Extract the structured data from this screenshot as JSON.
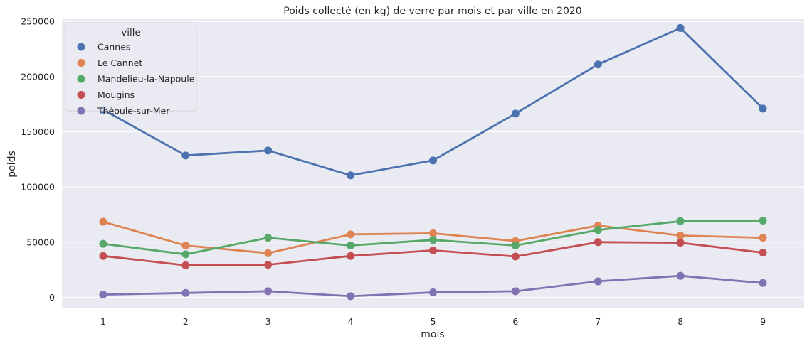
{
  "chart_data": {
    "type": "line",
    "title": "Poids collecté (en kg) de verre par mois et par ville en 2020",
    "xlabel": "mois",
    "ylabel": "poids",
    "x": [
      "1",
      "2",
      "3",
      "4",
      "5",
      "6",
      "7",
      "8",
      "9"
    ],
    "yticks": [
      "0",
      "50000",
      "100000",
      "150000",
      "200000",
      "250000"
    ],
    "ylim": [
      -10000,
      252000
    ],
    "grid": true,
    "legend": {
      "title": "ville",
      "placement": "top-left"
    },
    "series": [
      {
        "name": "Cannes",
        "color": "#4c72b0",
        "values": [
          170000,
          128500,
          133000,
          110500,
          124000,
          166500,
          211000,
          244000,
          171000
        ]
      },
      {
        "name": "Le Cannet",
        "color": "#dd8452",
        "values": [
          68500,
          47000,
          40000,
          57000,
          58000,
          51000,
          65000,
          56000,
          54000
        ]
      },
      {
        "name": "Mandelieu-la-Napoule",
        "color": "#55a868",
        "values": [
          48500,
          39000,
          54000,
          47000,
          52000,
          47000,
          61000,
          69000,
          69500
        ]
      },
      {
        "name": "Mougins",
        "color": "#c44e52",
        "values": [
          37500,
          29000,
          29500,
          37500,
          42500,
          37000,
          50000,
          49500,
          40500
        ]
      },
      {
        "name": "Théoule-sur-Mer",
        "color": "#8172b3",
        "values": [
          2500,
          4000,
          5500,
          1000,
          4500,
          5500,
          14500,
          19500,
          13000
        ]
      }
    ]
  }
}
